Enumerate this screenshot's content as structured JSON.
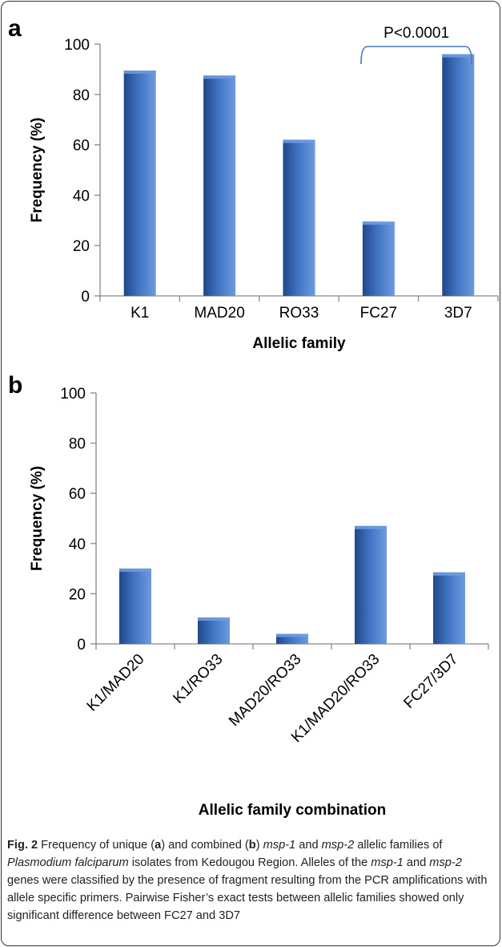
{
  "figure": {
    "caption": {
      "label": "Fig. 2",
      "t1": " Frequency of unique (",
      "a": "a",
      "t2": ") and combined (",
      "b": "b",
      "t3": ") ",
      "msp1": "msp-1",
      "t4": " and ",
      "msp2": "msp-2",
      "t5": " allelic families of ",
      "species": "Plasmodium falciparum",
      "t6": " isolates from Kedougou Region. Alleles of the ",
      "msp1b": "msp-1",
      "t7": " and ",
      "msp2b": "msp-2",
      "t8": " genes were classified by the presence of fragment resulting from the PCR amplifications with allele specific primers. Pairwise Fisher’s exact tests between allelic families showed only significant difference between FC27 and 3D7"
    }
  },
  "colors": {
    "bar": "#3f72c1",
    "bar_dark": "#21478a",
    "bar_light": "#6d9be0",
    "axis": "#888888"
  },
  "chart_data": [
    {
      "panel": "a",
      "type": "bar",
      "categories": [
        "K1",
        "MAD20",
        "RO33",
        "FC27",
        "3D7"
      ],
      "values": [
        89.5,
        87.5,
        62,
        29.5,
        96
      ],
      "xlabel": "Allelic family",
      "ylabel": "Frequency (%)",
      "ylim": [
        0,
        100
      ],
      "yticks": [
        0,
        20,
        40,
        60,
        80,
        100
      ],
      "annotation": {
        "text": "P<0.0001",
        "from": "FC27",
        "to": "3D7"
      }
    },
    {
      "panel": "b",
      "type": "bar",
      "categories": [
        "K1/MAD20",
        "K1/RO33",
        "MAD20/RO33",
        "K1/MAD20/RO33",
        "FC27/3D7"
      ],
      "values": [
        30,
        10.5,
        4,
        47,
        28.5
      ],
      "xlabel": "Allelic family combination",
      "ylabel": "Frequency (%)",
      "ylim": [
        0,
        100
      ],
      "yticks": [
        0,
        20,
        40,
        60,
        80,
        100
      ]
    }
  ]
}
